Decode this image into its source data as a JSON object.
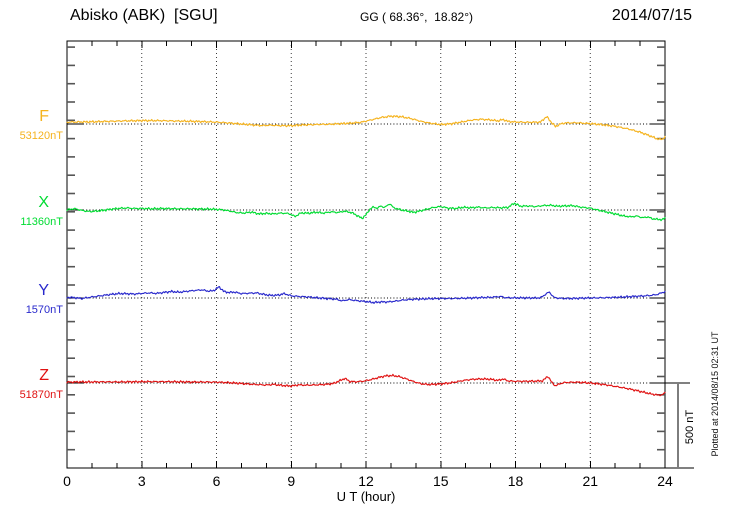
{
  "header": {
    "station_title": "Abisko (ABK)  [SGU]",
    "geo_coords": "GG ( 68.36°,  18.82°)",
    "date": "2014/07/15"
  },
  "axis": {
    "x_label": "U T (hour)",
    "x_tick_labels": [
      "0",
      "3",
      "6",
      "9",
      "12",
      "15",
      "18",
      "21",
      "24"
    ]
  },
  "scale_bar": {
    "label": "500 nT"
  },
  "plotted_note": "Plotted at 2014/08/15 02:31  UT",
  "chart_data": {
    "type": "line",
    "title": "Abisko (ABK)  [SGU]",
    "xlabel": "U T (hour)",
    "x_range_hours": [
      0,
      24
    ],
    "x_ticks": [
      0,
      3,
      6,
      9,
      12,
      15,
      18,
      21,
      24
    ],
    "grid": "vertical dotted every 3 hours, dotted baseline per component",
    "legend_position": "left edge, one label per trace",
    "y_scale": {
      "scale_bar_nT": 500,
      "minor_tick_nT": 100
    },
    "series": [
      {
        "name": "F",
        "baseline_value": "53120nT",
        "color": "#F5B31E",
        "points": [
          [
            0,
            11
          ],
          [
            0.5,
            12
          ],
          [
            1,
            13
          ],
          [
            1.5,
            15
          ],
          [
            2,
            17
          ],
          [
            2.5,
            19
          ],
          [
            3,
            20
          ],
          [
            3.5,
            20
          ],
          [
            4,
            19
          ],
          [
            4.5,
            17
          ],
          [
            5,
            16
          ],
          [
            5.5,
            14
          ],
          [
            6,
            11
          ],
          [
            6.5,
            6
          ],
          [
            7,
            0
          ],
          [
            7.4,
            -5
          ],
          [
            7.8,
            -9
          ],
          [
            8.2,
            -7
          ],
          [
            8.6,
            -10
          ],
          [
            9,
            -10
          ],
          [
            9.4,
            -6
          ],
          [
            9.8,
            -4
          ],
          [
            10.2,
            -2
          ],
          [
            10.6,
            -1
          ],
          [
            11,
            2
          ],
          [
            11.4,
            5
          ],
          [
            11.8,
            10
          ],
          [
            12.2,
            24
          ],
          [
            12.6,
            38
          ],
          [
            13,
            46
          ],
          [
            13.4,
            43
          ],
          [
            13.8,
            32
          ],
          [
            14.2,
            16
          ],
          [
            14.6,
            4
          ],
          [
            15,
            -3
          ],
          [
            15.4,
            1
          ],
          [
            15.8,
            11
          ],
          [
            16.2,
            22
          ],
          [
            16.6,
            28
          ],
          [
            17,
            24
          ],
          [
            17.3,
            18
          ],
          [
            17.5,
            27
          ],
          [
            17.7,
            15
          ],
          [
            18,
            12
          ],
          [
            18.5,
            10
          ],
          [
            19,
            11
          ],
          [
            19.25,
            44
          ],
          [
            19.45,
            8
          ],
          [
            19.6,
            -15
          ],
          [
            19.8,
            0
          ],
          [
            20,
            6
          ],
          [
            20.5,
            7
          ],
          [
            21,
            2
          ],
          [
            21.5,
            -4
          ],
          [
            22,
            -14
          ],
          [
            22.5,
            -28
          ],
          [
            23,
            -48
          ],
          [
            23.4,
            -70
          ],
          [
            23.7,
            -88
          ],
          [
            23.9,
            -90
          ],
          [
            24,
            -74
          ]
        ]
      },
      {
        "name": "X",
        "baseline_value": "11360nT",
        "color": "#00DC32",
        "points": [
          [
            0,
            1
          ],
          [
            0.3,
            8
          ],
          [
            0.6,
            -3
          ],
          [
            0.9,
            -9
          ],
          [
            1.2,
            -6
          ],
          [
            1.5,
            -1
          ],
          [
            1.8,
            5
          ],
          [
            2.1,
            10
          ],
          [
            2.4,
            12
          ],
          [
            2.7,
            9
          ],
          [
            3,
            9
          ],
          [
            3.4,
            7
          ],
          [
            3.8,
            9
          ],
          [
            4.2,
            8
          ],
          [
            4.6,
            7
          ],
          [
            5,
            7
          ],
          [
            5.4,
            6
          ],
          [
            5.8,
            5
          ],
          [
            6.2,
            2
          ],
          [
            6.5,
            -5
          ],
          [
            6.8,
            -15
          ],
          [
            7.1,
            -18
          ],
          [
            7.4,
            -12
          ],
          [
            7.7,
            -23
          ],
          [
            8,
            -20
          ],
          [
            8.3,
            -23
          ],
          [
            8.6,
            -18
          ],
          [
            8.9,
            -21
          ],
          [
            9.15,
            -38
          ],
          [
            9.4,
            -17
          ],
          [
            9.7,
            -19
          ],
          [
            10,
            -13
          ],
          [
            10.3,
            -18
          ],
          [
            10.6,
            -11
          ],
          [
            10.9,
            -15
          ],
          [
            11.1,
            -7
          ],
          [
            11.3,
            -11
          ],
          [
            11.5,
            -20
          ],
          [
            11.7,
            -38
          ],
          [
            11.85,
            -49
          ],
          [
            12,
            -28
          ],
          [
            12.15,
            4
          ],
          [
            12.3,
            18
          ],
          [
            12.45,
            10
          ],
          [
            12.6,
            24
          ],
          [
            12.75,
            14
          ],
          [
            12.95,
            38
          ],
          [
            13.1,
            14
          ],
          [
            13.3,
            5
          ],
          [
            13.5,
            -2
          ],
          [
            13.7,
            -7
          ],
          [
            13.9,
            -14
          ],
          [
            14.1,
            -8
          ],
          [
            14.4,
            3
          ],
          [
            14.7,
            15
          ],
          [
            15,
            20
          ],
          [
            15.3,
            11
          ],
          [
            15.6,
            9
          ],
          [
            15.9,
            16
          ],
          [
            16.2,
            13
          ],
          [
            16.5,
            17
          ],
          [
            16.8,
            12
          ],
          [
            17.1,
            15
          ],
          [
            17.4,
            13
          ],
          [
            17.7,
            15
          ],
          [
            17.95,
            40
          ],
          [
            18.2,
            22
          ],
          [
            18.5,
            24
          ],
          [
            18.8,
            20
          ],
          [
            19.1,
            26
          ],
          [
            19.4,
            28
          ],
          [
            19.7,
            22
          ],
          [
            20,
            24
          ],
          [
            20.3,
            26
          ],
          [
            20.6,
            17
          ],
          [
            21,
            11
          ],
          [
            21.3,
            0
          ],
          [
            21.6,
            -10
          ],
          [
            22,
            -23
          ],
          [
            22.3,
            -34
          ],
          [
            22.6,
            -40
          ],
          [
            22.9,
            -36
          ],
          [
            23.1,
            -46
          ],
          [
            23.3,
            -40
          ],
          [
            23.5,
            -52
          ],
          [
            23.8,
            -56
          ],
          [
            23.9,
            -58
          ],
          [
            24,
            -46
          ]
        ]
      },
      {
        "name": "Y",
        "baseline_value": "1570nT",
        "color": "#2929CC",
        "points": [
          [
            0,
            4
          ],
          [
            0.3,
            2
          ],
          [
            0.6,
            -3
          ],
          [
            0.9,
            4
          ],
          [
            1.2,
            10
          ],
          [
            1.5,
            16
          ],
          [
            1.8,
            22
          ],
          [
            2.1,
            26
          ],
          [
            2.4,
            25
          ],
          [
            2.7,
            23
          ],
          [
            3,
            27
          ],
          [
            3.3,
            30
          ],
          [
            3.6,
            27
          ],
          [
            3.9,
            33
          ],
          [
            4.2,
            38
          ],
          [
            4.5,
            34
          ],
          [
            4.8,
            39
          ],
          [
            5.1,
            44
          ],
          [
            5.4,
            48
          ],
          [
            5.7,
            40
          ],
          [
            5.9,
            44
          ],
          [
            6.1,
            66
          ],
          [
            6.3,
            38
          ],
          [
            6.5,
            32
          ],
          [
            6.7,
            35
          ],
          [
            7,
            26
          ],
          [
            7.3,
            28
          ],
          [
            7.6,
            30
          ],
          [
            7.9,
            21
          ],
          [
            8.2,
            15
          ],
          [
            8.5,
            17
          ],
          [
            8.7,
            26
          ],
          [
            9,
            13
          ],
          [
            9.3,
            9
          ],
          [
            9.6,
            7
          ],
          [
            10,
            2
          ],
          [
            10.4,
            -3
          ],
          [
            10.8,
            -7
          ],
          [
            11.05,
            -17
          ],
          [
            11.3,
            -9
          ],
          [
            11.6,
            -15
          ],
          [
            12,
            -21
          ],
          [
            12.3,
            -27
          ],
          [
            12.6,
            -23
          ],
          [
            12.9,
            -23
          ],
          [
            13.2,
            -18
          ],
          [
            13.5,
            -12
          ],
          [
            13.8,
            -8
          ],
          [
            14.2,
            -6
          ],
          [
            14.6,
            -4
          ],
          [
            15,
            -3
          ],
          [
            15.5,
            -3
          ],
          [
            16,
            -1
          ],
          [
            16.5,
            2
          ],
          [
            17,
            4
          ],
          [
            17.4,
            9
          ],
          [
            17.6,
            2
          ],
          [
            18,
            1
          ],
          [
            18.5,
            0
          ],
          [
            19,
            1
          ],
          [
            19.35,
            36
          ],
          [
            19.55,
            2
          ],
          [
            19.8,
            -2
          ],
          [
            20.2,
            -3
          ],
          [
            20.6,
            -1
          ],
          [
            21,
            0
          ],
          [
            21.4,
            1
          ],
          [
            21.8,
            3
          ],
          [
            22.2,
            5
          ],
          [
            22.6,
            8
          ],
          [
            23,
            11
          ],
          [
            23.4,
            15
          ],
          [
            23.7,
            21
          ],
          [
            24,
            38
          ]
        ]
      },
      {
        "name": "Z",
        "baseline_value": "51870nT",
        "color": "#E01212",
        "points": [
          [
            0,
            5
          ],
          [
            0.5,
            6
          ],
          [
            1,
            6
          ],
          [
            1.5,
            7
          ],
          [
            2,
            6
          ],
          [
            2.5,
            7
          ],
          [
            3,
            8
          ],
          [
            3.5,
            8
          ],
          [
            4,
            8
          ],
          [
            4.5,
            7
          ],
          [
            5,
            6
          ],
          [
            5.5,
            6
          ],
          [
            6,
            5
          ],
          [
            6.5,
            2
          ],
          [
            7,
            -3
          ],
          [
            7.5,
            -8
          ],
          [
            8,
            -12
          ],
          [
            8.3,
            -8
          ],
          [
            8.6,
            -14
          ],
          [
            9,
            -18
          ],
          [
            9.3,
            -11
          ],
          [
            9.6,
            -13
          ],
          [
            10,
            -11
          ],
          [
            10.4,
            -8
          ],
          [
            10.7,
            -3
          ],
          [
            11,
            17
          ],
          [
            11.15,
            27
          ],
          [
            11.35,
            9
          ],
          [
            11.6,
            7
          ],
          [
            11.9,
            11
          ],
          [
            12.2,
            20
          ],
          [
            12.5,
            32
          ],
          [
            12.8,
            42
          ],
          [
            13.05,
            44
          ],
          [
            13.3,
            39
          ],
          [
            13.6,
            25
          ],
          [
            13.9,
            9
          ],
          [
            14.2,
            -4
          ],
          [
            14.5,
            -9
          ],
          [
            14.8,
            -7
          ],
          [
            15.1,
            -4
          ],
          [
            15.4,
            1
          ],
          [
            15.7,
            9
          ],
          [
            16,
            17
          ],
          [
            16.3,
            22
          ],
          [
            16.6,
            24
          ],
          [
            17,
            22
          ],
          [
            17.3,
            15
          ],
          [
            17.5,
            24
          ],
          [
            17.7,
            12
          ],
          [
            18,
            10
          ],
          [
            18.4,
            10
          ],
          [
            18.8,
            11
          ],
          [
            19.1,
            13
          ],
          [
            19.3,
            41
          ],
          [
            19.45,
            4
          ],
          [
            19.6,
            -17
          ],
          [
            19.8,
            -3
          ],
          [
            20,
            3
          ],
          [
            20.4,
            5
          ],
          [
            20.8,
            2
          ],
          [
            21.2,
            -3
          ],
          [
            21.6,
            -10
          ],
          [
            22,
            -20
          ],
          [
            22.4,
            -30
          ],
          [
            22.8,
            -42
          ],
          [
            23.1,
            -53
          ],
          [
            23.4,
            -63
          ],
          [
            23.7,
            -71
          ],
          [
            23.9,
            -69
          ],
          [
            24,
            -57
          ]
        ]
      }
    ]
  }
}
